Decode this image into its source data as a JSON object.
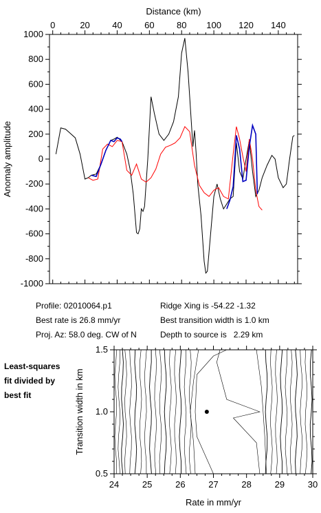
{
  "info": {
    "profile": "Profile: 02010064.p1",
    "best_rate": "Best rate is 26.8 mm/yr",
    "proj_az": "Proj. Az: 58.0 deg. CW of N",
    "ridge_xing": "Ridge Xing is -54.22 -1.32",
    "best_width": "Best transition width is 1.0 km",
    "depth": "Depth to source is   2.29 km"
  },
  "side_note": [
    "Least-squares",
    "fit divided by",
    "best fit"
  ],
  "chart_data": [
    {
      "type": "line",
      "xlabel": "Distance (km)",
      "ylabel": "Anomaly amplitude",
      "xlim": [
        -2,
        152
      ],
      "ylim": [
        -1000,
        1000
      ],
      "xticks": [
        0,
        20,
        40,
        60,
        80,
        100,
        120,
        140
      ],
      "yticks": [
        1000,
        800,
        600,
        400,
        200,
        0,
        -200,
        -400,
        -600,
        -800,
        -1000
      ],
      "grid": false,
      "series": [
        {
          "color": "#000000",
          "x": [
            2,
            5,
            8,
            11,
            14,
            17,
            20,
            22,
            24,
            27,
            30,
            33,
            36,
            38,
            40,
            43,
            46,
            48,
            50,
            52,
            53,
            54,
            55,
            56,
            57,
            59,
            61,
            63,
            66,
            69,
            72,
            75,
            78,
            80,
            82,
            84,
            86,
            87,
            88,
            89,
            90,
            92,
            94,
            95,
            96,
            98,
            100,
            102,
            104,
            106,
            108,
            110,
            112,
            114,
            116,
            118,
            120,
            122,
            124,
            126,
            128,
            130,
            133,
            136,
            138,
            140,
            143,
            145,
            147,
            149,
            150
          ],
          "y": [
            40,
            250,
            240,
            205,
            170,
            40,
            -160,
            -150,
            -130,
            -120,
            -40,
            70,
            150,
            160,
            175,
            140,
            40,
            -80,
            -280,
            -590,
            -600,
            -560,
            -400,
            -420,
            -380,
            0,
            500,
            370,
            200,
            150,
            200,
            300,
            500,
            850,
            970,
            700,
            300,
            100,
            230,
            50,
            -200,
            -450,
            -820,
            -915,
            -900,
            -600,
            -300,
            -200,
            -320,
            -400,
            -360,
            -320,
            -300,
            130,
            -100,
            -160,
            0,
            150,
            -100,
            -300,
            -250,
            -150,
            -50,
            30,
            0,
            -150,
            -230,
            -200,
            0,
            180,
            190
          ]
        },
        {
          "color": "#ff0000",
          "x": [
            22,
            25,
            28,
            31,
            34,
            37,
            40,
            43,
            46,
            49,
            52,
            55,
            58,
            61,
            64,
            67,
            70,
            73,
            76,
            79,
            82,
            85,
            88,
            91,
            94,
            97,
            100,
            103,
            106,
            109,
            112,
            114,
            116,
            118,
            120,
            122,
            124,
            126,
            128,
            130
          ],
          "y": [
            -150,
            -170,
            -160,
            80,
            120,
            100,
            150,
            140,
            -90,
            -130,
            -40,
            -160,
            -185,
            -150,
            -80,
            40,
            95,
            110,
            130,
            170,
            260,
            220,
            -50,
            -210,
            -270,
            -300,
            -250,
            -230,
            -300,
            -320,
            40,
            260,
            160,
            20,
            -100,
            160,
            0,
            -250,
            -380,
            -410
          ]
        },
        {
          "color": "#0000c0",
          "x": [
            24,
            27,
            30,
            33,
            36,
            38,
            40,
            42,
            43
          ],
          "y": [
            -130,
            -140,
            -40,
            70,
            150,
            140,
            170,
            160,
            140
          ]
        },
        {
          "color": "#0000c0",
          "x": [
            108,
            110,
            112,
            114,
            116,
            118,
            120,
            122,
            124,
            126,
            127
          ],
          "y": [
            -400,
            -330,
            -220,
            190,
            80,
            -180,
            -170,
            100,
            270,
            200,
            -280
          ]
        }
      ]
    },
    {
      "type": "contour",
      "xlabel": "Rate in mm/yr",
      "ylabel": "Transition width in km",
      "xlim": [
        24,
        30
      ],
      "ylim": [
        0.5,
        1.5
      ],
      "xticks": [
        24,
        25,
        26,
        27,
        28,
        29,
        30
      ],
      "yticks": [
        1.5,
        1.0,
        0.5
      ],
      "best_fit_point": [
        26.8,
        1.0
      ],
      "contour_rates_left": [
        23.9,
        24.05,
        24.15,
        24.25,
        24.35,
        24.5,
        24.65,
        24.8,
        24.95,
        25.1,
        25.25,
        25.4,
        25.55,
        25.7,
        25.85,
        26.0,
        26.15,
        26.3
      ],
      "contour_rates_right": [
        28.6,
        28.75,
        28.9,
        29.05,
        29.2,
        29.35,
        29.5,
        29.65,
        29.8,
        29.95
      ]
    }
  ]
}
